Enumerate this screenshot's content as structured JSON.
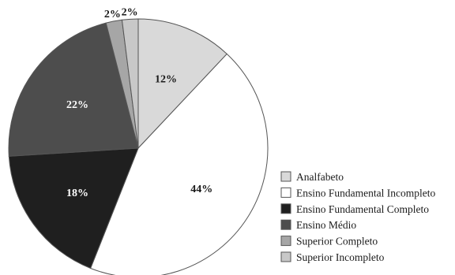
{
  "chart_data": {
    "type": "pie",
    "title": "",
    "start_angle_deg": 0,
    "direction": "clockwise",
    "legend_position": "bottom-right",
    "slices": [
      {
        "label": "Analfabeto",
        "value": 12,
        "display": "12%",
        "color": "#d9d9d9",
        "label_color": "#1a1a1a"
      },
      {
        "label": "Ensino Fundamental Incompleto",
        "value": 44,
        "display": "44%",
        "color": "#ffffff",
        "label_color": "#1a1a1a"
      },
      {
        "label": "Ensino Fundamental Completo",
        "value": 18,
        "display": "18%",
        "color": "#1f1f1f",
        "label_color": "#ffffff"
      },
      {
        "label": "Ensino Médio",
        "value": 22,
        "display": "22%",
        "color": "#4d4d4d",
        "label_color": "#ffffff"
      },
      {
        "label": "Superior Completo",
        "value": 2,
        "display": "2%",
        "color": "#a6a6a6",
        "label_color": "#1a1a1a"
      },
      {
        "label": "Superior Incompleto",
        "value": 2,
        "display": "2%",
        "color": "#c8c8c8",
        "label_color": "#1a1a1a"
      }
    ]
  }
}
